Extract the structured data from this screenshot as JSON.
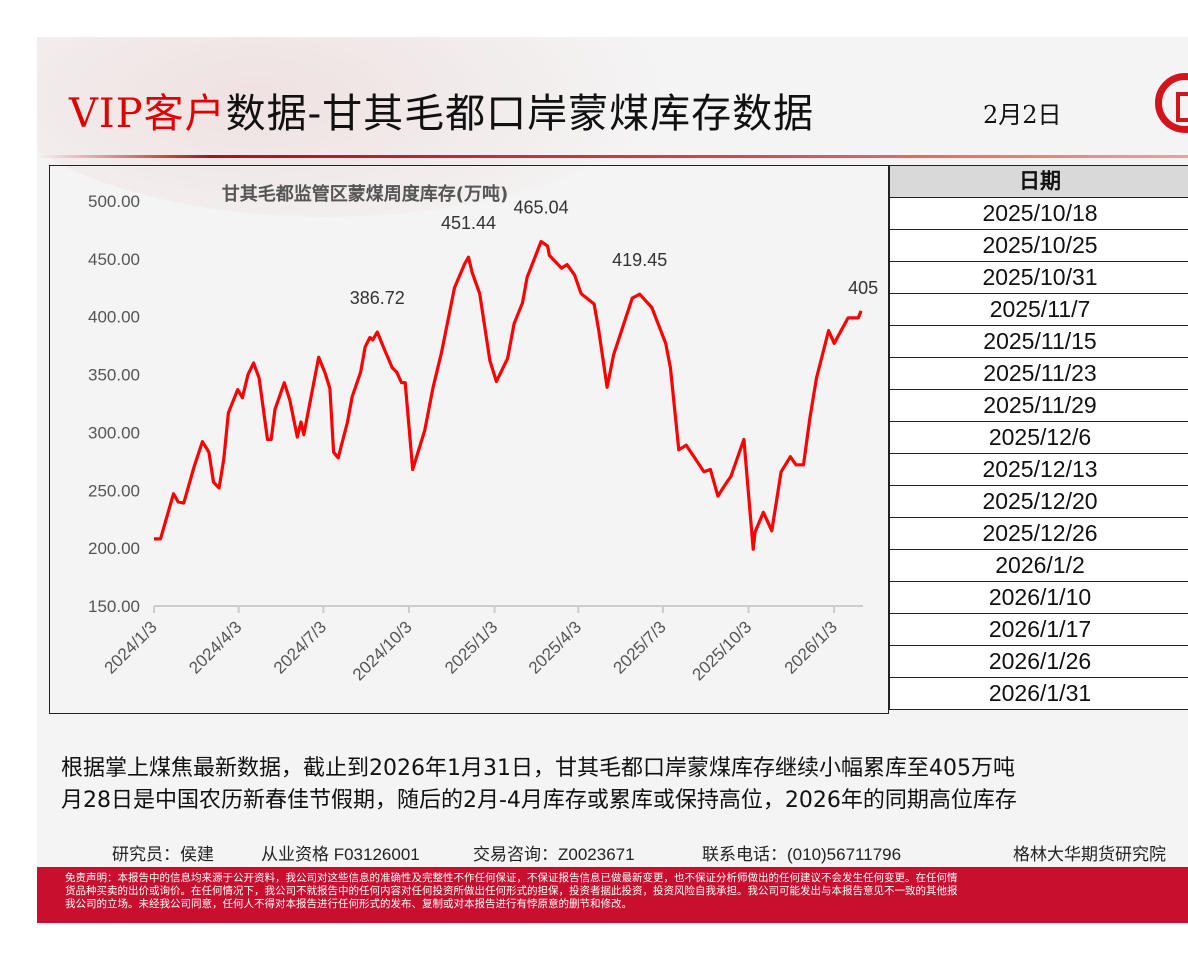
{
  "header": {
    "title_vip": "VIP客户",
    "title_rest": "数据-甘其毛都口岸蒙煤库存数据",
    "date": "2月2日"
  },
  "table": {
    "header": "日期",
    "rows": [
      "2025/10/18",
      "2025/10/25",
      "2025/10/31",
      "2025/11/7",
      "2025/11/15",
      "2025/11/23",
      "2025/11/29",
      "2025/12/6",
      "2025/12/13",
      "2025/12/20",
      "2025/12/26",
      "2026/1/2",
      "2026/1/10",
      "2026/1/17",
      "2026/1/26",
      "2026/1/31"
    ]
  },
  "chart_data": {
    "type": "line",
    "title": "甘其毛都监管区蒙煤周度库存(万吨)",
    "xlabel": "",
    "ylabel": "",
    "ylim": [
      150,
      500
    ],
    "yticks": [
      "150.00",
      "200.00",
      "250.00",
      "300.00",
      "350.00",
      "400.00",
      "450.00",
      "500.00"
    ],
    "x_unit": "days since 2024/1/3",
    "xticks": [
      {
        "day": 0,
        "label": "2024/1/3"
      },
      {
        "day": 91,
        "label": "2024/4/3"
      },
      {
        "day": 182,
        "label": "2024/7/3"
      },
      {
        "day": 274,
        "label": "2024/10/3"
      },
      {
        "day": 366,
        "label": "2025/1/3"
      },
      {
        "day": 456,
        "label": "2025/4/3"
      },
      {
        "day": 547,
        "label": "2025/7/3"
      },
      {
        "day": 639,
        "label": "2025/10/3"
      },
      {
        "day": 731,
        "label": "2026/1/3"
      }
    ],
    "xmax": 762,
    "series": [
      {
        "name": "库存",
        "color": "#ff0000",
        "points": [
          [
            0,
            208
          ],
          [
            7,
            208
          ],
          [
            21,
            247
          ],
          [
            26,
            240
          ],
          [
            32,
            239
          ],
          [
            43,
            270
          ],
          [
            52,
            292
          ],
          [
            59,
            283
          ],
          [
            64,
            257
          ],
          [
            70,
            252
          ],
          [
            75,
            277
          ],
          [
            80,
            317
          ],
          [
            90,
            337
          ],
          [
            95,
            330
          ],
          [
            101,
            350
          ],
          [
            107,
            360
          ],
          [
            113,
            347
          ],
          [
            122,
            294
          ],
          [
            126,
            294
          ],
          [
            130,
            320
          ],
          [
            140,
            343
          ],
          [
            146,
            328
          ],
          [
            154,
            296
          ],
          [
            158,
            309
          ],
          [
            161,
            298
          ],
          [
            177,
            365
          ],
          [
            184,
            351
          ],
          [
            189,
            338
          ],
          [
            193,
            283
          ],
          [
            198,
            278
          ],
          [
            208,
            309
          ],
          [
            213,
            331
          ],
          [
            222,
            352
          ],
          [
            227,
            374
          ],
          [
            232,
            382
          ],
          [
            235,
            380
          ],
          [
            240,
            386.72
          ],
          [
            248,
            371
          ],
          [
            256,
            356
          ],
          [
            261,
            352
          ],
          [
            266,
            343
          ],
          [
            270,
            343
          ],
          [
            278,
            268
          ],
          [
            291,
            302
          ],
          [
            300,
            339
          ],
          [
            309,
            369
          ],
          [
            323,
            425
          ],
          [
            334,
            446
          ],
          [
            338,
            451.44
          ],
          [
            342,
            438
          ],
          [
            350,
            420
          ],
          [
            361,
            362
          ],
          [
            368,
            344
          ],
          [
            380,
            364
          ],
          [
            387,
            394
          ],
          [
            396,
            412
          ],
          [
            401,
            434
          ],
          [
            416,
            465.04
          ],
          [
            423,
            461
          ],
          [
            425,
            453
          ],
          [
            438,
            442
          ],
          [
            444,
            445
          ],
          [
            452,
            436
          ],
          [
            459,
            420
          ],
          [
            473,
            411
          ],
          [
            478,
            388
          ],
          [
            487,
            339
          ],
          [
            494,
            367
          ],
          [
            514,
            416
          ],
          [
            522,
            419.45
          ],
          [
            535,
            408
          ],
          [
            550,
            377
          ],
          [
            555,
            356
          ],
          [
            564,
            285
          ],
          [
            572,
            289
          ],
          [
            582,
            277
          ],
          [
            591,
            266
          ],
          [
            598,
            268
          ],
          [
            606,
            245
          ],
          [
            614,
            255
          ],
          [
            620,
            262
          ],
          [
            634,
            294
          ],
          [
            644,
            199
          ],
          [
            646,
            214
          ],
          [
            655,
            231
          ],
          [
            664,
            215
          ],
          [
            674,
            266
          ],
          [
            684,
            279
          ],
          [
            690,
            272
          ],
          [
            698,
            272
          ],
          [
            705,
            313
          ],
          [
            712,
            347
          ],
          [
            725,
            388
          ],
          [
            731,
            377
          ],
          [
            746,
            399
          ],
          [
            757,
            399
          ],
          [
            760,
            405
          ]
        ]
      }
    ],
    "annotations": [
      {
        "day": 240,
        "value": 386.72,
        "label": "386.72"
      },
      {
        "day": 338,
        "value": 451.44,
        "label": "451.44"
      },
      {
        "day": 416,
        "value": 465.04,
        "label": "465.04"
      },
      {
        "day": 522,
        "value": 419.45,
        "label": "419.45"
      },
      {
        "day": 760,
        "value": 405,
        "label": "405"
      }
    ]
  },
  "commentary": {
    "line1": "根据掌上煤焦最新数据，截止到2026年1月31日，甘其毛都口岸蒙煤库存继续小幅累库至405万吨",
    "line2": "月28日是中国农历新春佳节假期，随后的2月-4月库存或累库或保持高位，2026年的同期高位库存"
  },
  "footer": {
    "researcher": "研究员：侯建",
    "qualification": "从业资格 F03126001",
    "consult": "交易咨询：Z0023671",
    "phone": "联系电话：(010)56711796",
    "institute": "格林大华期货研究院",
    "disclaimer1": "免责声明：本报告中的信息均来源于公开资料，我公司对这些信息的准确性及完整性不作任何保证，不保证报告信息已做最新变更，也不保证分析师做出的任何建议不会发生任何变更。在任何情",
    "disclaimer2": "货品种买卖的出价或询价。在任何情况下，我公司不就报告中的任何内容对任何投资所做出任何形式的担保，投资者据此投资，投资风险自我承担。我公司可能发出与本报告意见不一致的其他报",
    "disclaimer3": "我公司的立场。未经我公司同意，任何人不得对本报告进行任何形式的发布、复制或对本报告进行有悖原意的删节和修改。"
  }
}
